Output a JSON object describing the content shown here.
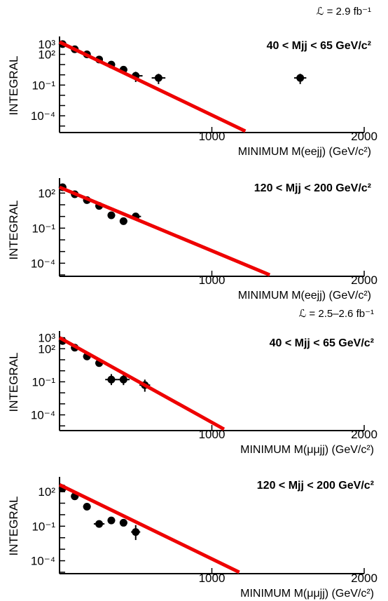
{
  "chart_data": [
    {
      "type": "scatter",
      "id": "p1",
      "title": "40 < Mjj < 65 GeV/c²",
      "luminosity_label": "ℒ = 2.9 fb⁻¹",
      "xlabel": "MINIMUM M(eejj) (GeV/c²)",
      "ylabel": "INTEGRAL",
      "xlim": [
        0,
        2000
      ],
      "ylim_log10": [
        -5.5,
        3.2
      ],
      "y_scale": "log",
      "xticks": [
        {
          "v": 1000,
          "label": "1000"
        },
        {
          "v": 2000,
          "label": "2000"
        }
      ],
      "yticks": [
        {
          "v": 3,
          "label": "10³"
        },
        {
          "v": 2,
          "label": "10²"
        },
        {
          "v": -1,
          "label": "10⁻¹"
        },
        {
          "v": -4,
          "label": "10⁻⁴"
        }
      ],
      "series": [
        {
          "name": "",
          "style": "points",
          "color": "#000000",
          "points": [
            {
              "x": 20,
              "y": 3.0,
              "xerr": 25,
              "yerr_lo": 0.1,
              "yerr_hi": 0.1
            },
            {
              "x": 100,
              "y": 2.5,
              "xerr": 25,
              "yerr_lo": 0.1,
              "yerr_hi": 0.1
            },
            {
              "x": 180,
              "y": 2.0,
              "xerr": 25,
              "yerr_lo": 0.1,
              "yerr_hi": 0.1
            },
            {
              "x": 260,
              "y": 1.5,
              "xerr": 25,
              "yerr_lo": 0.1,
              "yerr_hi": 0.1
            },
            {
              "x": 340,
              "y": 1.0,
              "xerr": 25,
              "yerr_lo": 0.1,
              "yerr_hi": 0.1
            },
            {
              "x": 420,
              "y": 0.5,
              "xerr": 25,
              "yerr_lo": 0.1,
              "yerr_hi": 0.1
            },
            {
              "x": 500,
              "y": -0.1,
              "xerr": 45,
              "yerr_lo": 0.6,
              "yerr_hi": 0.4
            },
            {
              "x": 650,
              "y": -0.3,
              "xerr": 45,
              "yerr_lo": 0.6,
              "yerr_hi": 0.4
            },
            {
              "x": 1580,
              "y": -0.3,
              "xerr": 40,
              "yerr_lo": 0.6,
              "yerr_hi": 0.4
            }
          ]
        },
        {
          "name": "",
          "style": "line",
          "color": "#ee0000",
          "points": [
            {
              "x": 0,
              "y": 3.2
            },
            {
              "x": 1220,
              "y": -5.5
            }
          ]
        }
      ]
    },
    {
      "type": "scatter",
      "id": "p2",
      "title": "120 < Mjj < 200 GeV/c²",
      "xlabel": "MINIMUM M(eejj) (GeV/c²)",
      "ylabel": "INTEGRAL",
      "xlim": [
        0,
        2000
      ],
      "ylim_log10": [
        -5.0,
        2.8
      ],
      "y_scale": "log",
      "xticks": [
        {
          "v": 1000,
          "label": "1000"
        },
        {
          "v": 2000,
          "label": "2000"
        }
      ],
      "yticks": [
        {
          "v": 2,
          "label": "10²"
        },
        {
          "v": -1,
          "label": "10⁻¹"
        },
        {
          "v": -4,
          "label": "10⁻⁴"
        }
      ],
      "series": [
        {
          "name": "",
          "style": "points",
          "color": "#000000",
          "points": [
            {
              "x": 20,
              "y": 2.5,
              "xerr": 25,
              "yerr_lo": 0.1,
              "yerr_hi": 0.1
            },
            {
              "x": 100,
              "y": 1.9,
              "xerr": 25,
              "yerr_lo": 0.1,
              "yerr_hi": 0.1
            },
            {
              "x": 180,
              "y": 1.4,
              "xerr": 25,
              "yerr_lo": 0.1,
              "yerr_hi": 0.1
            },
            {
              "x": 260,
              "y": 0.9,
              "xerr": 25,
              "yerr_lo": 0.1,
              "yerr_hi": 0.1
            },
            {
              "x": 340,
              "y": 0.1,
              "xerr": 25,
              "yerr_lo": 0.1,
              "yerr_hi": 0.1
            },
            {
              "x": 420,
              "y": -0.4,
              "xerr": 25,
              "yerr_lo": 0.15,
              "yerr_hi": 0.15
            },
            {
              "x": 500,
              "y": 0.0,
              "xerr": 35,
              "yerr_lo": 0.15,
              "yerr_hi": 0.15
            }
          ]
        },
        {
          "name": "",
          "style": "line",
          "color": "#ee0000",
          "points": [
            {
              "x": 0,
              "y": 2.5
            },
            {
              "x": 1380,
              "y": -5.0
            }
          ]
        }
      ]
    },
    {
      "type": "scatter",
      "id": "p3",
      "title": "40 < Mjj < 65 GeV/c²",
      "luminosity_label": "ℒ = 2.5–2.6 fb⁻¹",
      "xlabel": "MINIMUM M(μμjj) (GeV/c²)",
      "ylabel": "INTEGRAL",
      "xlim": [
        0,
        2000
      ],
      "ylim_log10": [
        -5.3,
        3.1
      ],
      "y_scale": "log",
      "xticks": [
        {
          "v": 1000,
          "label": "1000"
        },
        {
          "v": 2000,
          "label": "2000"
        }
      ],
      "yticks": [
        {
          "v": 3,
          "label": "10³"
        },
        {
          "v": 2,
          "label": "10²"
        },
        {
          "v": -1,
          "label": "10⁻¹"
        },
        {
          "v": -4,
          "label": "10⁻⁴"
        }
      ],
      "series": [
        {
          "name": "",
          "style": "points",
          "color": "#000000",
          "points": [
            {
              "x": 20,
              "y": 2.7,
              "xerr": 25,
              "yerr_lo": 0.1,
              "yerr_hi": 0.1
            },
            {
              "x": 100,
              "y": 2.1,
              "xerr": 25,
              "yerr_lo": 0.1,
              "yerr_hi": 0.1
            },
            {
              "x": 180,
              "y": 1.3,
              "xerr": 25,
              "yerr_lo": 0.1,
              "yerr_hi": 0.1
            },
            {
              "x": 260,
              "y": 0.7,
              "xerr": 25,
              "yerr_lo": 0.1,
              "yerr_hi": 0.1
            },
            {
              "x": 340,
              "y": -0.8,
              "xerr": 40,
              "yerr_lo": 0.5,
              "yerr_hi": 0.5
            },
            {
              "x": 420,
              "y": -0.8,
              "xerr": 40,
              "yerr_lo": 0.5,
              "yerr_hi": 0.5
            },
            {
              "x": 560,
              "y": -1.3,
              "xerr": 35,
              "yerr_lo": 0.6,
              "yerr_hi": 0.5
            }
          ]
        },
        {
          "name": "",
          "style": "line",
          "color": "#ee0000",
          "points": [
            {
              "x": 0,
              "y": 3.0
            },
            {
              "x": 1080,
              "y": -5.3
            }
          ]
        }
      ]
    },
    {
      "type": "scatter",
      "id": "p4",
      "title": "120 < Mjj < 200 GeV/c²",
      "xlabel": "MINIMUM M(μμjj) (GeV/c²)",
      "ylabel": "INTEGRAL",
      "xlim": [
        0,
        2000
      ],
      "ylim_log10": [
        -5.0,
        2.8
      ],
      "y_scale": "log",
      "xticks": [
        {
          "v": 1000,
          "label": "1000"
        },
        {
          "v": 2000,
          "label": "2000"
        }
      ],
      "yticks": [
        {
          "v": 2,
          "label": "10²"
        },
        {
          "v": -1,
          "label": "10⁻¹"
        },
        {
          "v": -4,
          "label": "10⁻⁴"
        }
      ],
      "series": [
        {
          "name": "",
          "style": "points",
          "color": "#000000",
          "points": [
            {
              "x": 20,
              "y": 2.3,
              "xerr": 25,
              "yerr_lo": 0.1,
              "yerr_hi": 0.1
            },
            {
              "x": 100,
              "y": 1.6,
              "xerr": 25,
              "yerr_lo": 0.1,
              "yerr_hi": 0.1
            },
            {
              "x": 180,
              "y": 0.7,
              "xerr": 25,
              "yerr_lo": 0.1,
              "yerr_hi": 0.1
            },
            {
              "x": 260,
              "y": -0.8,
              "xerr": 35,
              "yerr_lo": 0.25,
              "yerr_hi": 0.25
            },
            {
              "x": 340,
              "y": -0.5,
              "xerr": 25,
              "yerr_lo": 0.15,
              "yerr_hi": 0.15
            },
            {
              "x": 420,
              "y": -0.7,
              "xerr": 25,
              "yerr_lo": 0.25,
              "yerr_hi": 0.25
            },
            {
              "x": 500,
              "y": -1.5,
              "xerr": 30,
              "yerr_lo": 0.7,
              "yerr_hi": 0.6
            }
          ]
        },
        {
          "name": "",
          "style": "line",
          "color": "#ee0000",
          "points": [
            {
              "x": 0,
              "y": 2.6
            },
            {
              "x": 1180,
              "y": -5.0
            }
          ]
        }
      ]
    }
  ]
}
